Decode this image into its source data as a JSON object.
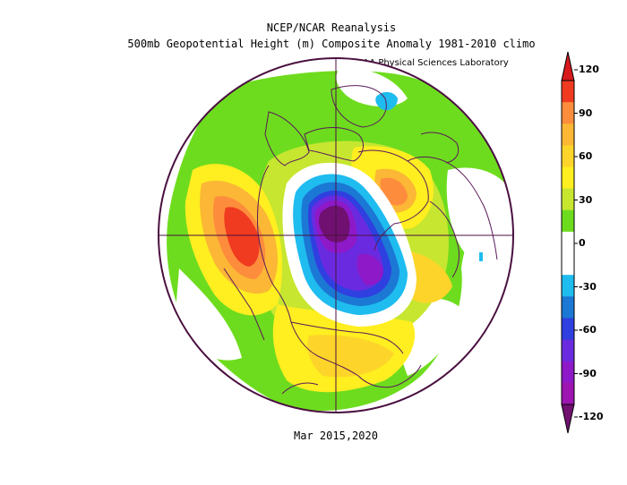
{
  "title_line1": "NCEP/NCAR Reanalysis",
  "title_line2": "500mb Geopotential Height (m) Composite Anomaly 1981-2010 climo",
  "credit": "NOAA Physical Sciences Laboratory",
  "footer": "Mar 2015,2020",
  "colorbar": {
    "labels": [
      "120",
      "90",
      "60",
      "30",
      "0",
      "-30",
      "-60",
      "-90",
      "-120"
    ],
    "bins": [
      {
        "color": "#d7191c"
      },
      {
        "color": "#f03b20"
      },
      {
        "color": "#fd8d3c"
      },
      {
        "color": "#fbb735"
      },
      {
        "color": "#fdd52a"
      },
      {
        "color": "#ffee20"
      },
      {
        "color": "#c6e630"
      },
      {
        "color": "#6edc1e"
      },
      {
        "color": "#ffffff"
      },
      {
        "color": "#ffffff"
      },
      {
        "color": "#1fbcef"
      },
      {
        "color": "#1b78d4"
      },
      {
        "color": "#2f3fe0"
      },
      {
        "color": "#6a2be0"
      },
      {
        "color": "#8d19c8"
      },
      {
        "color": "#9d14b0"
      },
      {
        "color": "#701070"
      }
    ]
  }
}
